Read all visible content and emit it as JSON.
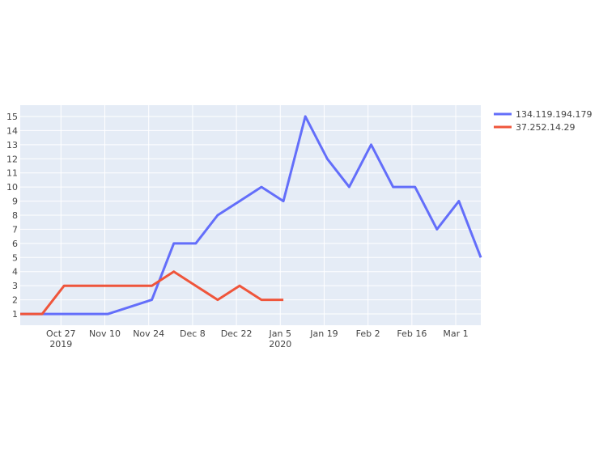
{
  "chart_data": {
    "type": "line",
    "title": "",
    "xlabel": "",
    "ylabel": "",
    "xlim": [
      "2019-10-14",
      "2020-03-09"
    ],
    "ylim": [
      0.2,
      15.8
    ],
    "grid": true,
    "legend_position": "top-right",
    "plot_background": "#e5ecf6",
    "x_ticks": [
      {
        "date": "2019-10-27",
        "label": "Oct 27",
        "sub": "2019"
      },
      {
        "date": "2019-11-10",
        "label": "Nov 10",
        "sub": ""
      },
      {
        "date": "2019-11-24",
        "label": "Nov 24",
        "sub": ""
      },
      {
        "date": "2019-12-08",
        "label": "Dec 8",
        "sub": ""
      },
      {
        "date": "2019-12-22",
        "label": "Dec 22",
        "sub": ""
      },
      {
        "date": "2020-01-05",
        "label": "Jan 5",
        "sub": "2020"
      },
      {
        "date": "2020-01-19",
        "label": "Jan 19",
        "sub": ""
      },
      {
        "date": "2020-02-02",
        "label": "Feb 2",
        "sub": ""
      },
      {
        "date": "2020-02-16",
        "label": "Feb 16",
        "sub": ""
      },
      {
        "date": "2020-03-01",
        "label": "Mar 1",
        "sub": ""
      }
    ],
    "y_ticks": [
      1,
      2,
      3,
      4,
      5,
      6,
      7,
      8,
      9,
      10,
      11,
      12,
      13,
      14,
      15
    ],
    "series": [
      {
        "name": "134.119.194.179",
        "color": "#636efa",
        "x": [
          "2019-10-14",
          "2019-10-21",
          "2019-10-28",
          "2019-11-04",
          "2019-11-11",
          "2019-11-25",
          "2019-12-02",
          "2019-12-09",
          "2019-12-16",
          "2019-12-23",
          "2019-12-30",
          "2020-01-06",
          "2020-01-13",
          "2020-01-20",
          "2020-01-27",
          "2020-02-03",
          "2020-02-10",
          "2020-02-17",
          "2020-02-24",
          "2020-03-02",
          "2020-03-09"
        ],
        "y": [
          1,
          1,
          1,
          1,
          1,
          2,
          6,
          6,
          8,
          9,
          10,
          9,
          15,
          12,
          10,
          13,
          10,
          10,
          7,
          9,
          5
        ]
      },
      {
        "name": "37.252.14.29",
        "color": "#ef553b",
        "x": [
          "2019-10-14",
          "2019-10-21",
          "2019-10-28",
          "2019-11-04",
          "2019-11-11",
          "2019-11-18",
          "2019-11-25",
          "2019-12-02",
          "2019-12-09",
          "2019-12-16",
          "2019-12-23",
          "2019-12-30",
          "2020-01-06"
        ],
        "y": [
          1,
          1,
          3,
          3,
          3,
          3,
          3,
          4,
          3,
          2,
          3,
          2,
          2
        ]
      }
    ]
  }
}
